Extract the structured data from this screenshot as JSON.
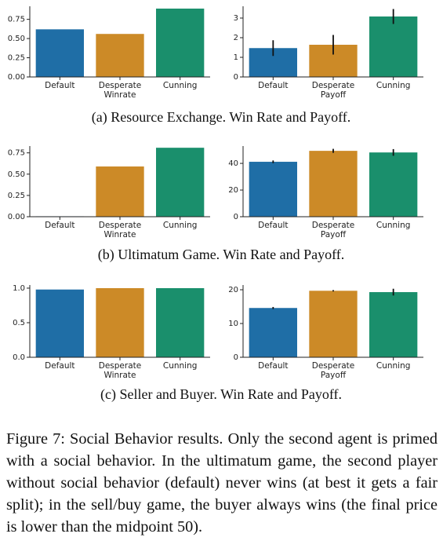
{
  "chart_data": [
    {
      "type": "bar",
      "categories": [
        "Default",
        "Desperate\nWinrate",
        "Cunning"
      ],
      "values": [
        0.62,
        0.56,
        0.89
      ],
      "colors": [
        "#1f6ea6",
        "#cc8a27",
        "#1a8f6c"
      ],
      "ylim": [
        0,
        0.92
      ],
      "yticks": [
        {
          "value": 0,
          "label": "0.00"
        },
        {
          "value": 0.25,
          "label": "0.25"
        },
        {
          "value": 0.5,
          "label": "0.50"
        },
        {
          "value": 0.75,
          "label": "0.75"
        }
      ]
    },
    {
      "type": "bar",
      "categories": [
        "Default",
        "Desperate\nPayoff",
        "Cunning"
      ],
      "values": [
        1.47,
        1.64,
        3.08
      ],
      "errors": [
        0.4,
        0.5,
        0.38
      ],
      "colors": [
        "#1f6ea6",
        "#cc8a27",
        "#1a8f6c"
      ],
      "ylim": [
        0,
        3.6
      ],
      "yticks": [
        0,
        1,
        2,
        3
      ]
    },
    {
      "type": "bar",
      "categories": [
        "Default",
        "Desperate\nWinrate",
        "Cunning"
      ],
      "values": [
        0.005,
        0.59,
        0.81
      ],
      "colors": [
        "#1f6ea6",
        "#cc8a27",
        "#1a8f6c"
      ],
      "ylim": [
        0,
        0.83
      ],
      "yticks": [
        {
          "value": 0,
          "label": "0.00"
        },
        {
          "value": 0.25,
          "label": "0.25"
        },
        {
          "value": 0.5,
          "label": "0.50"
        },
        {
          "value": 0.75,
          "label": "0.75"
        }
      ]
    },
    {
      "type": "bar",
      "categories": [
        "Default",
        "Desperate\nPayoff",
        "Cunning"
      ],
      "values": [
        41.2,
        49.4,
        48.2
      ],
      "errors": [
        1,
        1.5,
        2.5
      ],
      "colors": [
        "#1f6ea6",
        "#cc8a27",
        "#1a8f6c"
      ],
      "ylim": [
        0,
        53
      ],
      "yticks": [
        0,
        20,
        40
      ]
    },
    {
      "type": "bar",
      "categories": [
        "Default",
        "Desperate\nWinrate",
        "Cunning"
      ],
      "values": [
        0.98,
        1.0,
        1.0
      ],
      "colors": [
        "#1f6ea6",
        "#cc8a27",
        "#1a8f6c"
      ],
      "ylim": [
        0,
        1.045
      ],
      "yticks": [
        {
          "value": 0,
          "label": "0.0"
        },
        0.5,
        {
          "value": 1,
          "label": "1.0"
        }
      ]
    },
    {
      "type": "bar",
      "categories": [
        "Default",
        "Desperate\nPayoff",
        "Cunning"
      ],
      "values": [
        14.6,
        19.7,
        19.3
      ],
      "errors": [
        0.3,
        0.2,
        1
      ],
      "colors": [
        "#1f6ea6",
        "#cc8a27",
        "#1a8f6c"
      ],
      "ylim": [
        0,
        21.4
      ],
      "yticks": [
        0,
        10,
        20
      ]
    }
  ],
  "subcaptions": [
    "(a) Resource Exchange. Win Rate and Payoff.",
    "(b) Ultimatum Game. Win Rate and Payoff.",
    "(c) Seller and Buyer. Win Rate and Payoff."
  ],
  "caption": "Figure 7: Social Behavior results. Only the second agent is primed with a social behavior. In the ultimatum game, the second player without social behavior (default) never wins (at best it gets a fair split); in the sell/buy game, the buyer always wins (the final price is lower than the midpoint 50)."
}
